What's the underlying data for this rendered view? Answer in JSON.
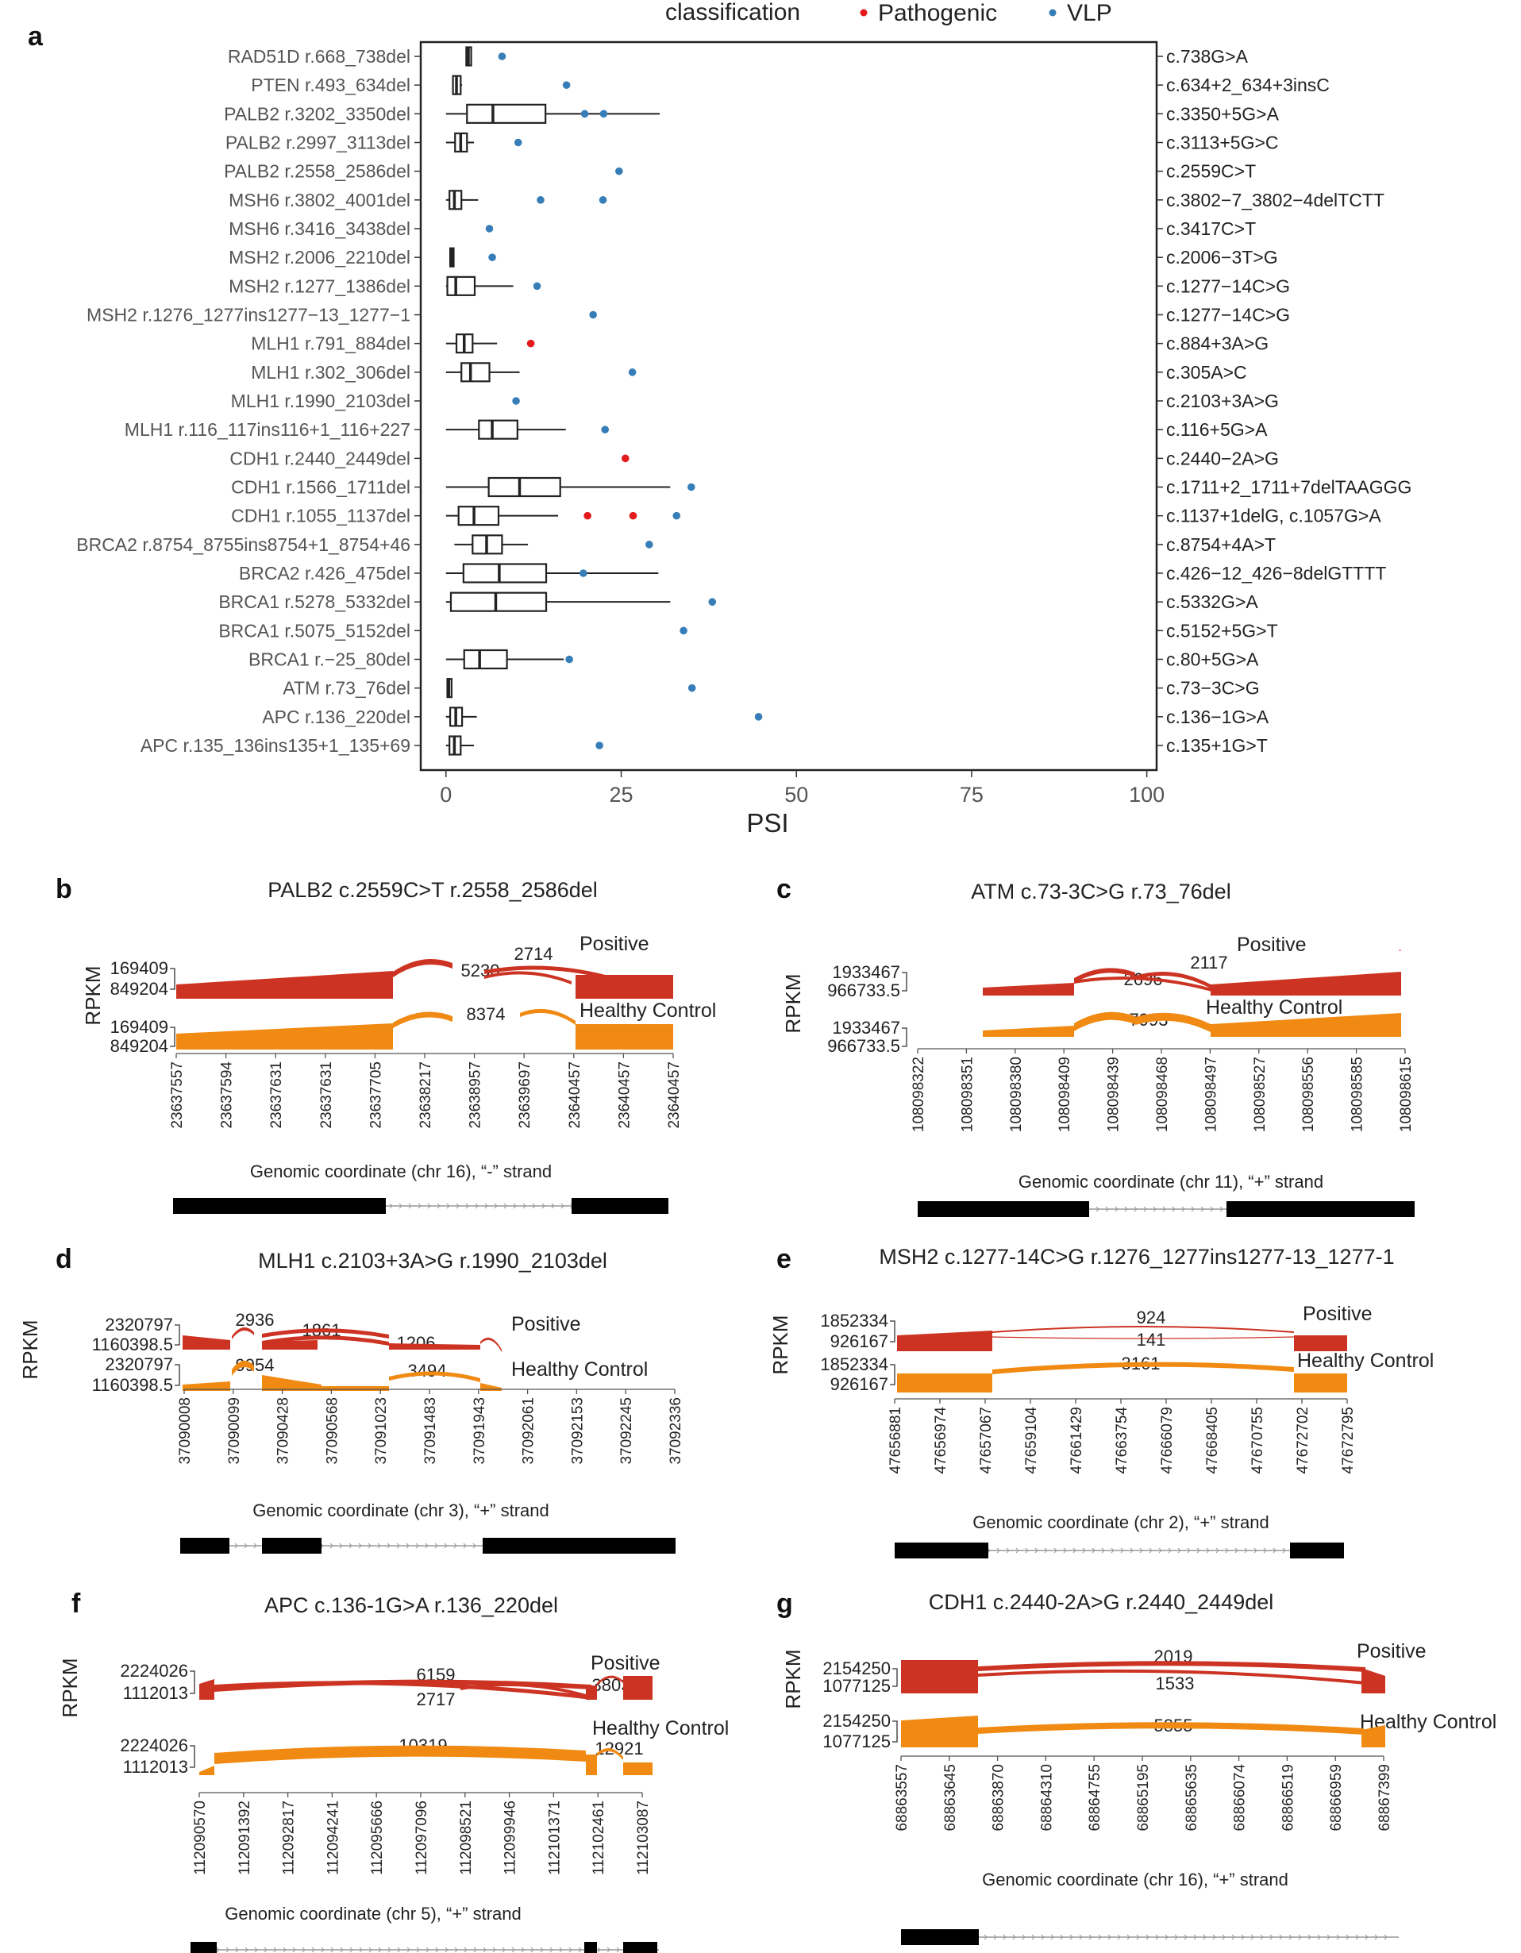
{
  "chart_data": [
    {
      "panel": "a",
      "type": "boxplot",
      "xlabel": "PSI",
      "legend_title": "classification",
      "legend_placement": "top",
      "xlim": [
        0,
        100
      ],
      "xticks": [
        0,
        25,
        50,
        75,
        100
      ],
      "grid": false,
      "series": [
        {
          "name": "Pathogenic",
          "color": "#e41a1c"
        },
        {
          "name": "VLP",
          "color": "#377eb8"
        }
      ],
      "rows": [
        {
          "label": "RAD51D r.668_738del",
          "variant": "c.738G>A",
          "box": {
            "min": 2.8,
            "q1": 2.9,
            "median": 3.2,
            "q3": 3.6,
            "max": 3.7
          },
          "points": [
            {
              "value": 8,
              "class": "VLP"
            }
          ]
        },
        {
          "label": "PTEN r.493_634del",
          "variant": "c.634+2_634+3insC",
          "box": {
            "min": 0.9,
            "q1": 1.0,
            "median": 1.5,
            "q3": 2.1,
            "max": 2.3
          },
          "points": [
            {
              "value": 17.2,
              "class": "VLP"
            }
          ]
        },
        {
          "label": "PALB2 r.3202_3350del",
          "variant": "c.3350+5G>A",
          "box": {
            "min": 0,
            "q1": 3,
            "median": 6.7,
            "q3": 14.2,
            "max": 30.5
          },
          "points": [
            {
              "value": 19.8,
              "class": "VLP"
            },
            {
              "value": 22.5,
              "class": "VLP"
            }
          ]
        },
        {
          "label": "PALB2 r.2997_3113del",
          "variant": "c.3113+5G>C",
          "box": {
            "min": 0,
            "q1": 1.3,
            "median": 2.1,
            "q3": 3.0,
            "max": 4.0
          },
          "points": [
            {
              "value": 10.3,
              "class": "VLP"
            }
          ]
        },
        {
          "label": "PALB2 r.2558_2586del",
          "variant": "c.2559C>T",
          "box": null,
          "points": [
            {
              "value": 24.7,
              "class": "VLP"
            }
          ]
        },
        {
          "label": "MSH6 r.3802_4001del",
          "variant": "c.3802−7_3802−4delTCTT",
          "box": {
            "min": 0,
            "q1": 0.5,
            "median": 1.2,
            "q3": 2.2,
            "max": 4.6
          },
          "points": [
            {
              "value": 13.5,
              "class": "VLP"
            },
            {
              "value": 22.4,
              "class": "VLP"
            }
          ]
        },
        {
          "label": "MSH6 r.3416_3438del",
          "variant": "c.3417C>T",
          "box": null,
          "points": [
            {
              "value": 6.2,
              "class": "VLP"
            }
          ]
        },
        {
          "label": "MSH2 r.2006_2210del",
          "variant": "c.2006−3T>G",
          "box": {
            "min": 0.5,
            "q1": 0.6,
            "median": 0.9,
            "q3": 1.1,
            "max": 1.2
          },
          "points": [
            {
              "value": 6.6,
              "class": "VLP"
            }
          ]
        },
        {
          "label": "MSH2 r.1277_1386del",
          "variant": "c.1277−14C>G",
          "box": {
            "min": 0,
            "q1": 0.2,
            "median": 1.4,
            "q3": 4.1,
            "max": 9.6
          },
          "points": [
            {
              "value": 13.0,
              "class": "VLP"
            }
          ]
        },
        {
          "label": "MSH2 r.1276_1277ins1277−13_1277−1",
          "variant": "c.1277−14C>G",
          "box": null,
          "points": [
            {
              "value": 21.0,
              "class": "VLP"
            }
          ]
        },
        {
          "label": "MLH1 r.791_884del",
          "variant": "c.884+3A>G",
          "box": {
            "min": 0,
            "q1": 1.5,
            "median": 2.6,
            "q3": 3.8,
            "max": 7.3
          },
          "points": [
            {
              "value": 12.1,
              "class": "Pathogenic"
            }
          ]
        },
        {
          "label": "MLH1 r.302_306del",
          "variant": "c.305A>C",
          "box": {
            "min": 0,
            "q1": 2.2,
            "median": 3.5,
            "q3": 6.2,
            "max": 10.5
          },
          "points": [
            {
              "value": 26.6,
              "class": "VLP"
            }
          ]
        },
        {
          "label": "MLH1 r.1990_2103del",
          "variant": "c.2103+3A>G",
          "box": null,
          "points": [
            {
              "value": 10.0,
              "class": "VLP"
            }
          ]
        },
        {
          "label": "MLH1 r.116_117ins116+1_116+227",
          "variant": "c.116+5G>A",
          "box": {
            "min": 0,
            "q1": 4.7,
            "median": 6.6,
            "q3": 10.2,
            "max": 17.1
          },
          "points": [
            {
              "value": 22.7,
              "class": "VLP"
            }
          ]
        },
        {
          "label": "CDH1 r.2440_2449del",
          "variant": "c.2440−2A>G",
          "box": null,
          "points": [
            {
              "value": 25.6,
              "class": "Pathogenic"
            }
          ]
        },
        {
          "label": "CDH1 r.1566_1711del",
          "variant": "c.1711+2_1711+7delTAAGGG",
          "box": {
            "min": 0,
            "q1": 6.1,
            "median": 10.5,
            "q3": 16.3,
            "max": 32.0
          },
          "points": [
            {
              "value": 35.0,
              "class": "VLP"
            }
          ]
        },
        {
          "label": "CDH1 r.1055_1137del",
          "variant": "c.1137+1delG, c.1057G>A",
          "box": {
            "min": 0,
            "q1": 1.8,
            "median": 4.0,
            "q3": 7.5,
            "max": 16.0
          },
          "points": [
            {
              "value": 20.2,
              "class": "Pathogenic"
            },
            {
              "value": 26.7,
              "class": "Pathogenic"
            },
            {
              "value": 32.9,
              "class": "VLP"
            }
          ]
        },
        {
          "label": "BRCA2 r.8754_8755ins8754+1_8754+46",
          "variant": "c.8754+4A>T",
          "box": {
            "min": 1.2,
            "q1": 3.8,
            "median": 5.8,
            "q3": 8.0,
            "max": 11.7
          },
          "points": [
            {
              "value": 29.0,
              "class": "VLP"
            }
          ]
        },
        {
          "label": "BRCA2 r.426_475del",
          "variant": "c.426−12_426−8delGTTTT",
          "box": {
            "min": 0,
            "q1": 2.5,
            "median": 7.6,
            "q3": 14.3,
            "max": 30.3
          },
          "points": [
            {
              "value": 19.6,
              "class": "VLP"
            }
          ]
        },
        {
          "label": "BRCA1 r.5278_5332del",
          "variant": "c.5332G>A",
          "box": {
            "min": 0,
            "q1": 0.7,
            "median": 7.1,
            "q3": 14.3,
            "max": 32.0
          },
          "points": [
            {
              "value": 38.0,
              "class": "VLP"
            }
          ]
        },
        {
          "label": "BRCA1 r.5075_5152del",
          "variant": "c.5152+5G>T",
          "box": null,
          "points": [
            {
              "value": 33.9,
              "class": "VLP"
            }
          ]
        },
        {
          "label": "BRCA1 r.−25_80del",
          "variant": "c.80+5G>A",
          "box": {
            "min": 0,
            "q1": 2.6,
            "median": 4.8,
            "q3": 8.7,
            "max": 16.8
          },
          "points": [
            {
              "value": 17.6,
              "class": "VLP"
            }
          ]
        },
        {
          "label": "ATM r.73_76del",
          "variant": "c.73−3C>G",
          "box": {
            "min": 0.2,
            "q1": 0.2,
            "median": 0.4,
            "q3": 0.8,
            "max": 0.9
          },
          "points": [
            {
              "value": 35.1,
              "class": "VLP"
            }
          ]
        },
        {
          "label": "APC r.136_220del",
          "variant": "c.136−1G>A",
          "box": {
            "min": 0,
            "q1": 0.6,
            "median": 1.4,
            "q3": 2.3,
            "max": 4.4
          },
          "points": [
            {
              "value": 44.6,
              "class": "VLP"
            }
          ]
        },
        {
          "label": "APC r.135_136ins135+1_135+69",
          "variant": "c.135+1G>T",
          "box": {
            "min": 0,
            "q1": 0.5,
            "median": 1.2,
            "q3": 2.1,
            "max": 4.0
          },
          "points": [
            {
              "value": 21.9,
              "class": "VLP"
            }
          ]
        }
      ]
    },
    {
      "panel": "b",
      "type": "sashimi",
      "title": "PALB2 c.2559C>T r.2558_2586del",
      "ylabel": "RPKM",
      "xlabel": "Genomic coordinate (chr 16), “-” strand",
      "x_ticks": [
        "23637557",
        "23637594",
        "23637631",
        "23637631",
        "23637705",
        "23638217",
        "23638957",
        "23639697",
        "23640457",
        "23640457",
        "23640457"
      ],
      "tracks": [
        {
          "name": "Positive",
          "y_ticks": [
            "169409",
            "849204"
          ],
          "junctions": [
            "5230",
            "2714"
          ]
        },
        {
          "name": "Healthy Control",
          "y_ticks": [
            "169409",
            "849204"
          ],
          "junctions": [
            "8374"
          ]
        }
      ]
    },
    {
      "panel": "c",
      "type": "sashimi",
      "title": "ATM c.73-3C>G r.73_76del",
      "ylabel": "RPKM",
      "xlabel": "Genomic coordinate (chr 11), “+” strand",
      "x_ticks": [
        "108098322",
        "108098351",
        "108098380",
        "108098409",
        "108098439",
        "108098468",
        "108098497",
        "108098527",
        "108098556",
        "108098585",
        "108098615"
      ],
      "tracks": [
        {
          "name": "Positive",
          "y_ticks": [
            "1933467",
            "966733.5"
          ],
          "junctions": [
            "2696",
            "2117"
          ]
        },
        {
          "name": "Healthy Control",
          "y_ticks": [
            "1933467",
            "966733.5"
          ],
          "junctions": [
            "7993"
          ]
        }
      ]
    },
    {
      "panel": "d",
      "type": "sashimi",
      "title": "MLH1 c.2103+3A>G r.1990_2103del",
      "ylabel": "RPKM",
      "xlabel": "Genomic coordinate (chr 3), “+” strand",
      "x_ticks": [
        "37090008",
        "37090099",
        "37090428",
        "37090568",
        "37091023",
        "37091483",
        "37091943",
        "37092061",
        "37092153",
        "37092245",
        "37092336"
      ],
      "tracks": [
        {
          "name": "Positive",
          "y_ticks": [
            "2320797",
            "1160398.5"
          ],
          "junctions": [
            "2936",
            "1861",
            "1206"
          ]
        },
        {
          "name": "Healthy Control",
          "y_ticks": [
            "2320797",
            "1160398.5"
          ],
          "junctions": [
            "9954",
            "3494"
          ]
        }
      ]
    },
    {
      "panel": "e",
      "type": "sashimi",
      "title": "MSH2 c.1277-14C>G r.1276_1277ins1277-13_1277-1",
      "ylabel": "RPKM",
      "xlabel": "Genomic coordinate (chr 2), “+” strand",
      "x_ticks": [
        "47656881",
        "47656974",
        "47657067",
        "47659104",
        "47661429",
        "47663754",
        "47666079",
        "47668405",
        "47670755",
        "47672702",
        "47672795"
      ],
      "tracks": [
        {
          "name": "Positive",
          "y_ticks": [
            "1852334",
            "926167"
          ],
          "junctions": [
            "924",
            "141"
          ]
        },
        {
          "name": "Healthy Control",
          "y_ticks": [
            "1852334",
            "926167"
          ],
          "junctions": [
            "3161"
          ]
        }
      ]
    },
    {
      "panel": "f",
      "type": "sashimi",
      "title": "APC c.136-1G>A r.136_220del",
      "ylabel": "RPKM",
      "xlabel": "Genomic coordinate (chr 5), “+” strand",
      "x_ticks": [
        "112090570",
        "112091392",
        "112092817",
        "112094241",
        "112095666",
        "112097096",
        "112098521",
        "112099946",
        "112101371",
        "112102461",
        "112103087"
      ],
      "tracks": [
        {
          "name": "Positive",
          "y_ticks": [
            "2224026",
            "1112013"
          ],
          "junctions": [
            "6159",
            "2717",
            "3803"
          ]
        },
        {
          "name": "Healthy Control",
          "y_ticks": [
            "2224026",
            "1112013"
          ],
          "junctions": [
            "10319",
            "12921"
          ]
        }
      ]
    },
    {
      "panel": "g",
      "type": "sashimi",
      "title": "CDH1 c.2440-2A>G  r.2440_2449del",
      "ylabel": "RPKM",
      "xlabel": "Genomic coordinate (chr 16), “+” strand",
      "x_ticks": [
        "68863557",
        "68863645",
        "68863870",
        "68864310",
        "68864755",
        "68865195",
        "68865635",
        "68866074",
        "68866519",
        "68866959",
        "68867399"
      ],
      "tracks": [
        {
          "name": "Positive",
          "y_ticks": [
            "2154250",
            "1077125"
          ],
          "junctions": [
            "2019",
            "1533"
          ]
        },
        {
          "name": "Healthy Control",
          "y_ticks": [
            "2154250",
            "1077125"
          ],
          "junctions": [
            "5855"
          ]
        }
      ]
    }
  ]
}
